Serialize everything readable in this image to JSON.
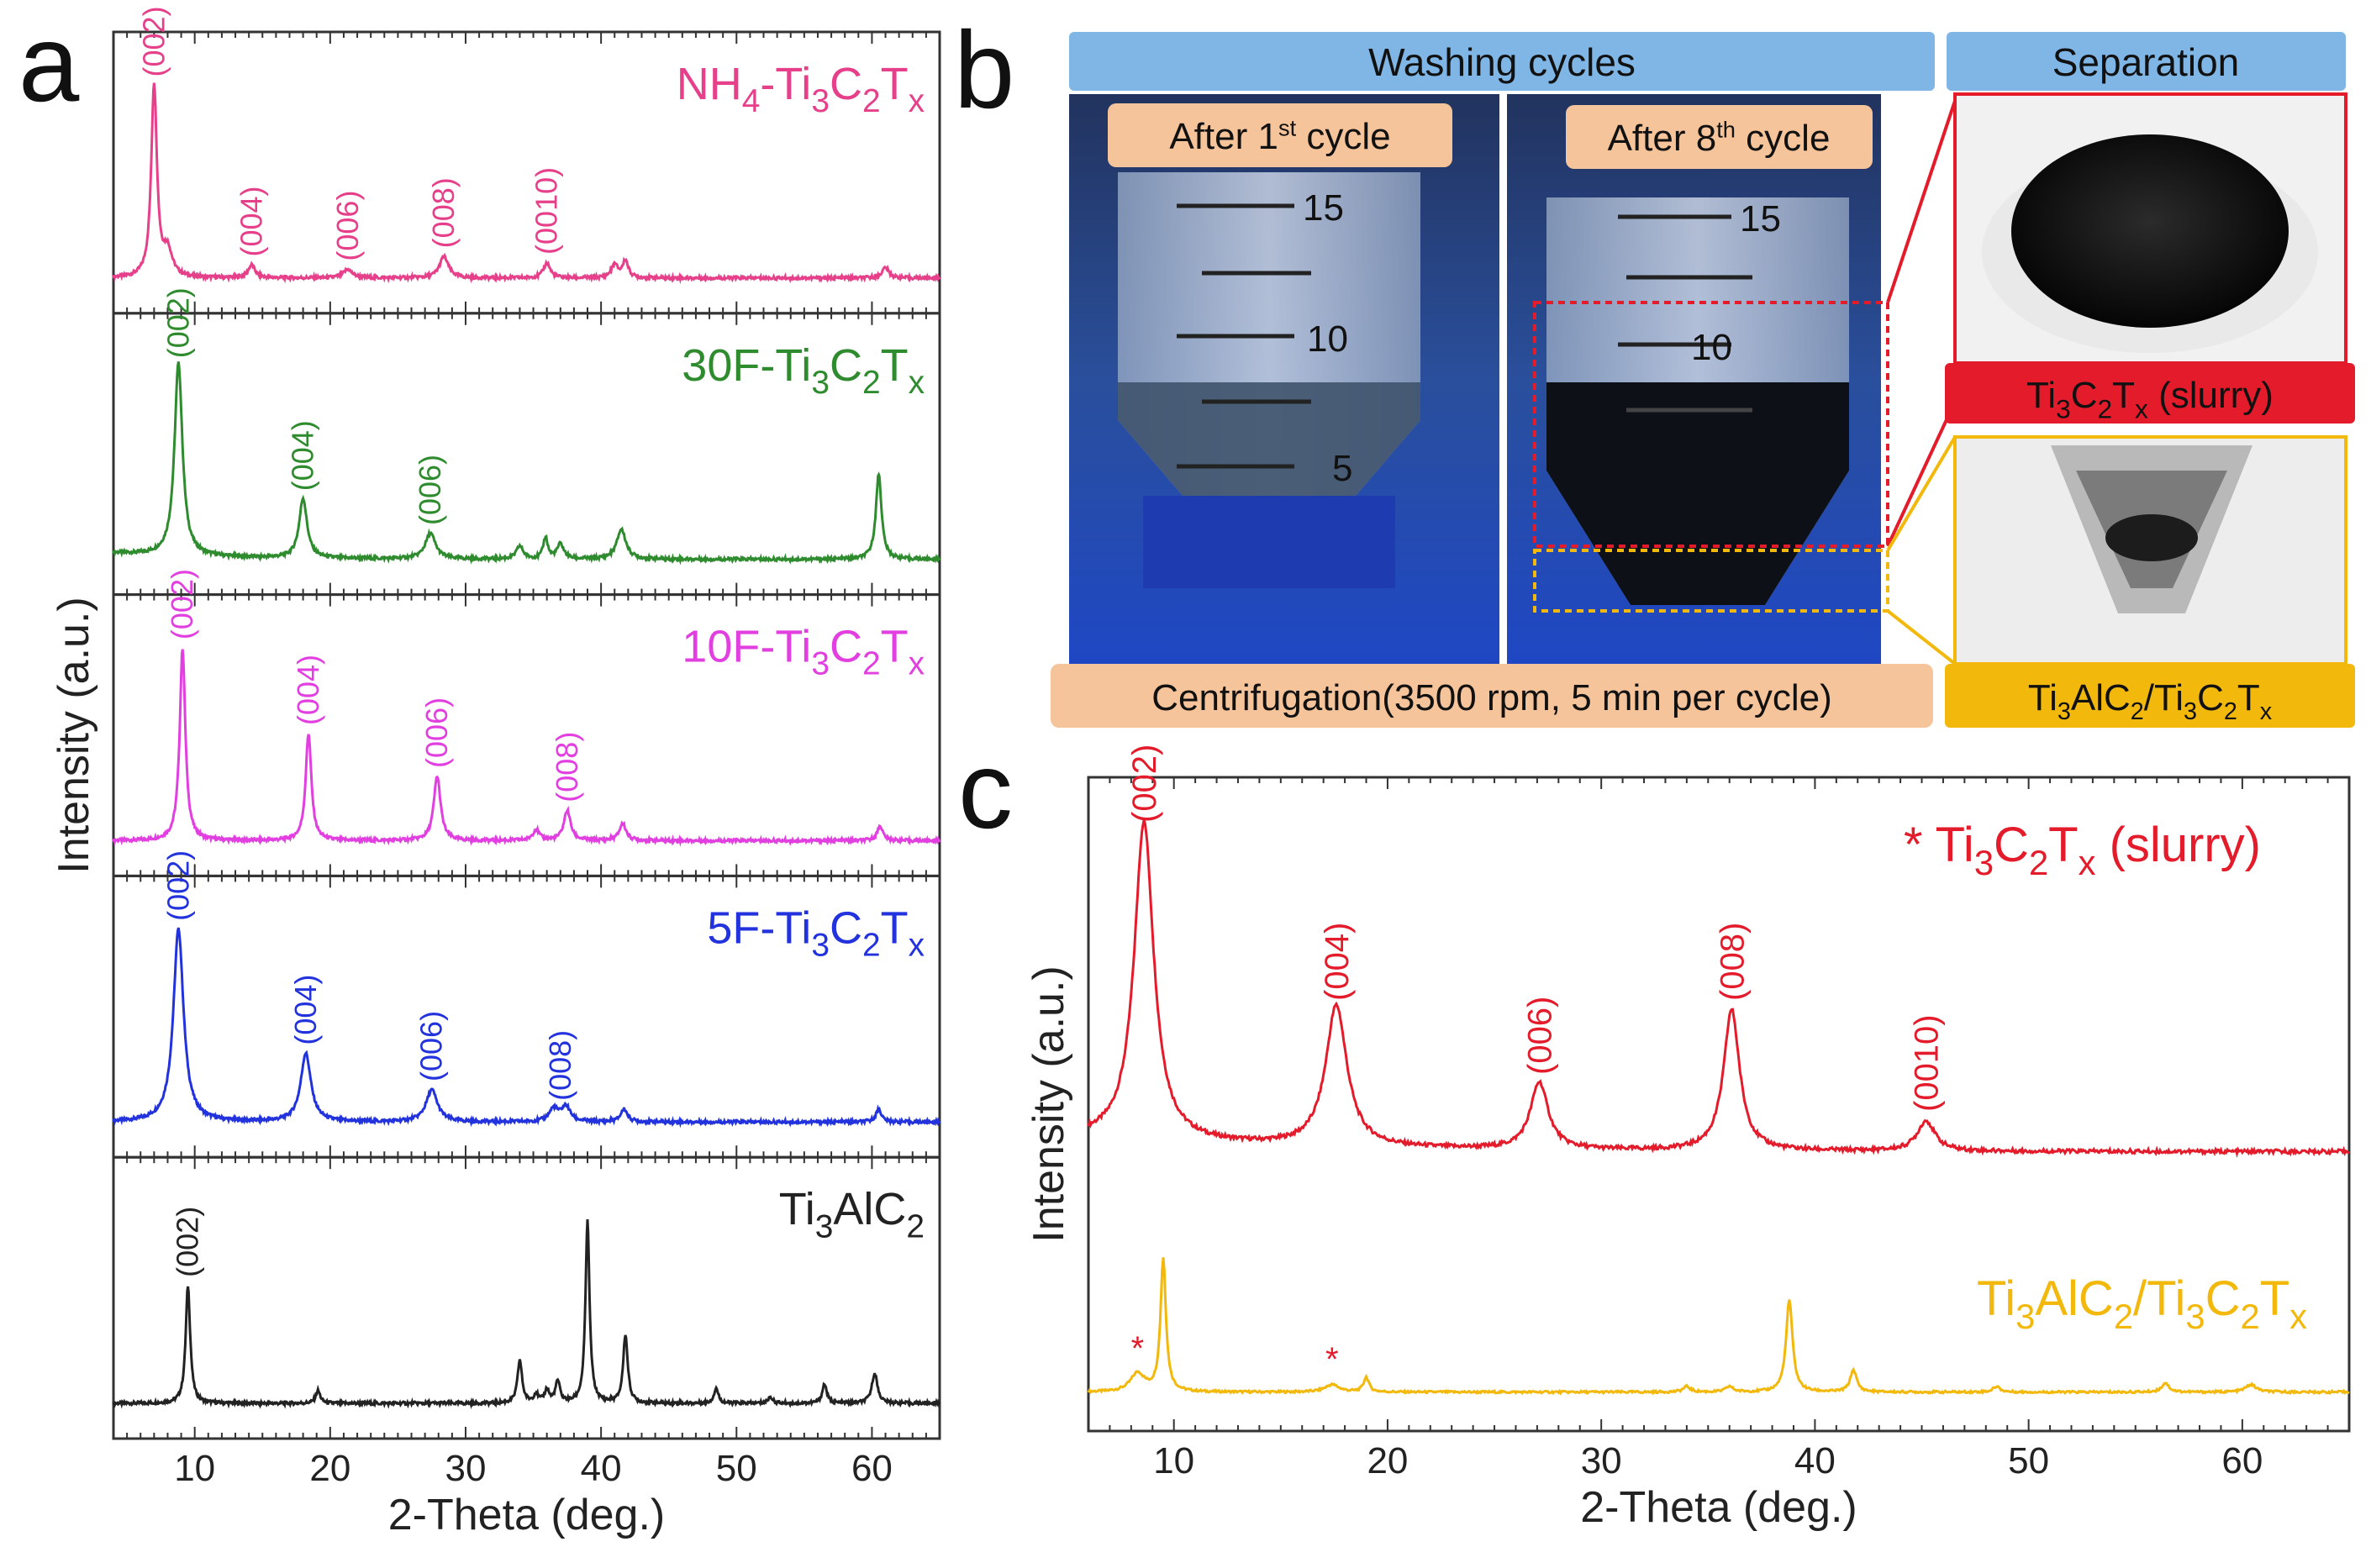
{
  "panel_labels": {
    "a": "a",
    "b": "b",
    "c": "c"
  },
  "colors": {
    "nh4": "#e6408b",
    "f30": "#2e8b2e",
    "f10": "#e23fe0",
    "f5": "#2233dd",
    "max": "#222222",
    "slurry": "#e31b2b",
    "mix": "#f2b90c",
    "header": "#7fb6e6",
    "tag": "#f6c49a"
  },
  "chart_data": [
    {
      "type": "line",
      "id": "panel-a",
      "xlabel": "2-Theta (deg.)",
      "ylabel": "Intensity (a.u.)",
      "xlim": [
        4,
        65
      ],
      "xticks": [
        10,
        20,
        30,
        40,
        50,
        60
      ],
      "stacked": true,
      "series": [
        {
          "name": "NH4-Ti3C2Tx",
          "label_parts": [
            "NH",
            "4",
            "-Ti",
            "3",
            "C",
            "2",
            "T",
            "x"
          ],
          "color_key": "nh4",
          "peaks": [
            [
              7.0,
              0.9,
              0.25
            ],
            [
              8.0,
              0.12,
              0.4
            ],
            [
              14.2,
              0.06,
              0.3
            ],
            [
              21.3,
              0.04,
              0.4
            ],
            [
              28.4,
              0.1,
              0.4
            ],
            [
              36.0,
              0.07,
              0.3
            ],
            [
              41.0,
              0.06,
              0.3
            ],
            [
              41.8,
              0.08,
              0.25
            ],
            [
              61.0,
              0.05,
              0.3
            ]
          ],
          "hkl": [
            {
              "x": 7.0,
              "t": "(002)"
            },
            {
              "x": 14.2,
              "t": "(004)"
            },
            {
              "x": 21.3,
              "t": "(006)"
            },
            {
              "x": 28.4,
              "t": "(008)"
            },
            {
              "x": 36.0,
              "t": "(0010)"
            }
          ]
        },
        {
          "name": "30F-Ti3C2Tx",
          "label_parts": [
            "30F-Ti",
            "3",
            "C",
            "2",
            "T",
            "x"
          ],
          "color_key": "f30",
          "peaks": [
            [
              8.8,
              0.9,
              0.35
            ],
            [
              18.0,
              0.28,
              0.35
            ],
            [
              27.4,
              0.12,
              0.45
            ],
            [
              34.0,
              0.06,
              0.3
            ],
            [
              35.9,
              0.1,
              0.2
            ],
            [
              37.0,
              0.07,
              0.3
            ],
            [
              41.5,
              0.14,
              0.4
            ],
            [
              60.5,
              0.4,
              0.25
            ]
          ],
          "hkl": [
            {
              "x": 8.8,
              "t": "(002)"
            },
            {
              "x": 18.0,
              "t": "(004)"
            },
            {
              "x": 27.4,
              "t": "(006)"
            }
          ]
        },
        {
          "name": "10F-Ti3C2Tx",
          "label_parts": [
            "10F-Ti",
            "3",
            "C",
            "2",
            "T",
            "x"
          ],
          "color_key": "f10",
          "peaks": [
            [
              9.1,
              0.9,
              0.25
            ],
            [
              18.4,
              0.5,
              0.25
            ],
            [
              27.9,
              0.3,
              0.3
            ],
            [
              35.2,
              0.05,
              0.3
            ],
            [
              37.5,
              0.14,
              0.3
            ],
            [
              41.6,
              0.08,
              0.3
            ],
            [
              60.6,
              0.07,
              0.25
            ]
          ],
          "hkl": [
            {
              "x": 9.1,
              "t": "(002)"
            },
            {
              "x": 18.4,
              "t": "(004)"
            },
            {
              "x": 27.9,
              "t": "(006)"
            },
            {
              "x": 37.5,
              "t": "(008)"
            }
          ]
        },
        {
          "name": "5F-Ti3C2Tx",
          "label_parts": [
            "5F-Ti",
            "3",
            "C",
            "2",
            "T",
            "x"
          ],
          "color_key": "f5",
          "peaks": [
            [
              8.8,
              0.9,
              0.45
            ],
            [
              18.2,
              0.32,
              0.45
            ],
            [
              27.5,
              0.15,
              0.5
            ],
            [
              36.5,
              0.06,
              0.4
            ],
            [
              37.4,
              0.07,
              0.4
            ],
            [
              41.7,
              0.06,
              0.3
            ],
            [
              60.5,
              0.06,
              0.25
            ]
          ],
          "hkl": [
            {
              "x": 8.8,
              "t": "(002)"
            },
            {
              "x": 18.2,
              "t": "(004)"
            },
            {
              "x": 27.5,
              "t": "(006)"
            },
            {
              "x": 37.0,
              "t": "(008)"
            }
          ]
        },
        {
          "name": "Ti3AlC2",
          "label_parts": [
            "Ti",
            "3",
            "AlC",
            "2"
          ],
          "color_key": "max",
          "peaks": [
            [
              9.5,
              0.55,
              0.2
            ],
            [
              19.1,
              0.06,
              0.2
            ],
            [
              34.0,
              0.2,
              0.2
            ],
            [
              35.2,
              0.04,
              0.2
            ],
            [
              36.0,
              0.06,
              0.2
            ],
            [
              36.8,
              0.1,
              0.2
            ],
            [
              39.0,
              0.85,
              0.18
            ],
            [
              41.8,
              0.32,
              0.2
            ],
            [
              48.5,
              0.07,
              0.2
            ],
            [
              52.5,
              0.03,
              0.2
            ],
            [
              56.5,
              0.09,
              0.2
            ],
            [
              60.2,
              0.14,
              0.25
            ]
          ],
          "hkl": [
            {
              "x": 9.5,
              "t": "(002)"
            }
          ]
        }
      ]
    },
    {
      "type": "line",
      "id": "panel-c",
      "xlabel": "2-Theta (deg.)",
      "ylabel": "Intensity (a.u.)",
      "xlim": [
        6,
        65
      ],
      "xticks": [
        10,
        20,
        30,
        40,
        50,
        60
      ],
      "series": [
        {
          "name": "Ti3C2Tx (slurry)",
          "label_parts": [
            "* ",
            "Ti",
            "3",
            "C",
            "2",
            "T",
            "x",
            " (slurry)"
          ],
          "color_key": "slurry",
          "peaks": [
            [
              8.6,
              0.95,
              0.55
            ],
            [
              17.6,
              0.42,
              0.6
            ],
            [
              27.1,
              0.2,
              0.5
            ],
            [
              36.1,
              0.42,
              0.45
            ],
            [
              45.2,
              0.09,
              0.5
            ]
          ],
          "hkl": [
            {
              "x": 8.6,
              "t": "(002)"
            },
            {
              "x": 17.6,
              "t": "(004)"
            },
            {
              "x": 27.1,
              "t": "(006)"
            },
            {
              "x": 36.1,
              "t": "(008)"
            },
            {
              "x": 45.2,
              "t": "(0010)"
            }
          ]
        },
        {
          "name": "Ti3AlC2/Ti3C2Tx",
          "label_parts": [
            "Ti",
            "3",
            "AlC",
            "2",
            "/Ti",
            "3",
            "C",
            "2",
            "T",
            "x"
          ],
          "color_key": "mix",
          "peaks": [
            [
              8.3,
              0.1,
              0.4
            ],
            [
              9.5,
              0.72,
              0.15
            ],
            [
              17.4,
              0.04,
              0.4
            ],
            [
              19.0,
              0.08,
              0.15
            ],
            [
              34.0,
              0.03,
              0.2
            ],
            [
              36.0,
              0.03,
              0.2
            ],
            [
              38.8,
              0.5,
              0.18
            ],
            [
              41.8,
              0.12,
              0.18
            ],
            [
              48.5,
              0.03,
              0.2
            ],
            [
              56.4,
              0.05,
              0.2
            ],
            [
              60.4,
              0.04,
              0.3
            ]
          ],
          "stars": [
            8.3,
            17.4
          ],
          "hkl": []
        }
      ]
    }
  ],
  "panel_b": {
    "header_left": "Washing cycles",
    "header_right": "Separation",
    "tag1_parts": [
      "After 1",
      "st",
      " cycle"
    ],
    "tag8_parts": [
      "After 8",
      "th",
      " cycle"
    ],
    "bottom_tag": "Centrifugation(3500 rpm, 5 min per cycle)",
    "tube_marks": [
      "15",
      "10",
      "5"
    ],
    "slurry_tag_parts": [
      "Ti",
      "3",
      "C",
      "2",
      "T",
      "x",
      " (slurry)"
    ],
    "mix_tag_parts": [
      "Ti",
      "3",
      "AlC",
      "2",
      "/Ti",
      "3",
      "C",
      "2",
      "T",
      "x"
    ]
  }
}
